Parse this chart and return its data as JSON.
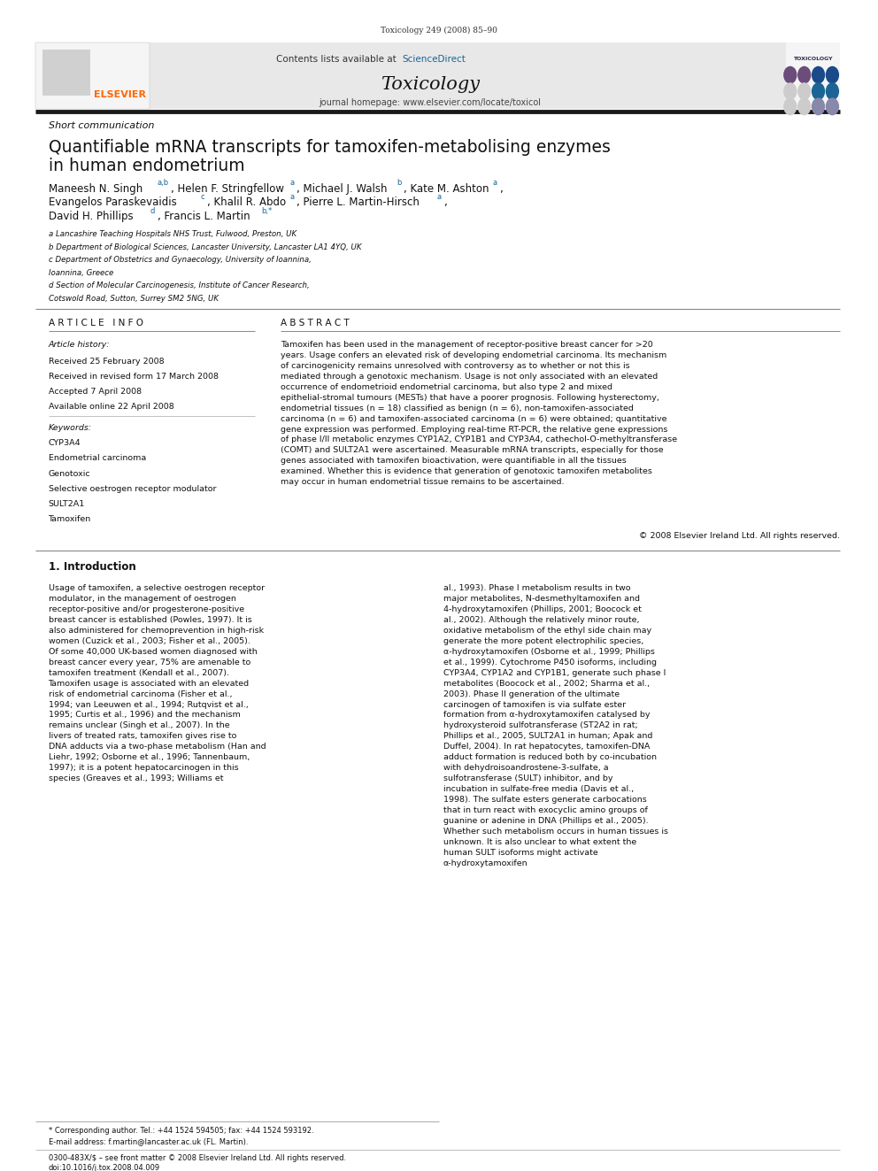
{
  "page_width": 9.92,
  "page_height": 13.23,
  "bg_color": "#ffffff",
  "journal_cite": "Toxicology 249 (2008) 85–90",
  "journal_title": "Toxicology",
  "contents_text": "Contents lists available at ScienceDirect",
  "sciencedirect_color": "#1a6496",
  "journal_homepage": "journal homepage: www.elsevier.com/locate/toxicol",
  "section_label": "Short communication",
  "article_title_line1": "Quantifiable mRNA transcripts for tamoxifen-metabolising enzymes",
  "article_title_line2": "in human endometrium",
  "affil_a": "a Lancashire Teaching Hospitals NHS Trust, Fulwood, Preston, UK",
  "affil_b": "b Department of Biological Sciences, Lancaster University, Lancaster LA1 4YQ, UK",
  "affil_c": "c Department of Obstetrics and Gynaecology, University of Ioannina,",
  "affil_c2": "Ioannina, Greece",
  "affil_d": "d Section of Molecular Carcinogenesis, Institute of Cancer Research,",
  "affil_d2": "Cotswold Road, Sutton, Surrey SM2 5NG, UK",
  "article_history_label": "Article history:",
  "received": "Received 25 February 2008",
  "received_revised": "Received in revised form 17 March 2008",
  "accepted": "Accepted 7 April 2008",
  "available": "Available online 22 April 2008",
  "keywords_label": "Keywords:",
  "keyword1": "CYP3A4",
  "keyword2": "Endometrial carcinoma",
  "keyword3": "Genotoxic",
  "keyword4": "Selective oestrogen receptor modulator",
  "keyword5": "SULT2A1",
  "keyword6": "Tamoxifen",
  "abstract_text": "Tamoxifen has been used in the management of receptor-positive breast cancer for >20 years. Usage confers an elevated risk of developing endometrial carcinoma. Its mechanism of carcinogenicity remains unresolved with controversy as to whether or not this is mediated through a genotoxic mechanism. Usage is not only associated with an elevated occurrence of endometrioid endometrial carcinoma, but also type 2 and mixed epithelial-stromal tumours (MESTs) that have a poorer prognosis. Following hysterectomy, endometrial tissues (n = 18) classified as benign (n = 6), non-tamoxifen-associated carcinoma (n = 6) and tamoxifen-associated carcinoma (n = 6) were obtained; quantitative gene expression was performed. Employing real-time RT-PCR, the relative gene expressions of phase I/II metabolic enzymes CYP1A2, CYP1B1 and CYP3A4, cathechol-O-methyltransferase (COMT) and SULT2A1 were ascertained. Measurable mRNA transcripts, especially for those genes associated with tamoxifen bioactivation, were quantifiable in all the tissues examined. Whether this is evidence that generation of genotoxic tamoxifen metabolites may occur in human endometrial tissue remains to be ascertained.",
  "copyright": "© 2008 Elsevier Ireland Ltd. All rights reserved.",
  "intro_header": "1. Introduction",
  "intro_text_col1": "Usage of tamoxifen, a selective oestrogen receptor modulator, in the management of oestrogen receptor-positive and/or progesterone-positive breast cancer is established (Powles, 1997). It is also administered for chemoprevention in high-risk women (Cuzick et al., 2003; Fisher et al., 2005). Of some 40,000 UK-based women diagnosed with breast cancer every year, 75% are amenable to tamoxifen treatment (Kendall et al., 2007). Tamoxifen usage is associated with an elevated risk of endometrial carcinoma (Fisher et al., 1994; van Leeuwen et al., 1994; Rutqvist et al., 1995; Curtis et al., 1996) and the mechanism remains unclear (Singh et al., 2007). In the livers of treated rats, tamoxifen gives rise to DNA adducts via a two-phase metabolism (Han and Liehr, 1992; Osborne et al., 1996; Tannenbaum, 1997); it is a potent hepatocarcinogen in this species (Greaves et al., 1993; Williams et",
  "intro_text_col2": "al., 1993). Phase I metabolism results in two major metabolites, N-desmethyltamoxifen and 4-hydroxytamoxifen (Phillips, 2001; Boocock et al., 2002). Although the relatively minor route, oxidative metabolism of the ethyl side chain may generate the more potent electrophilic species, α-hydroxytamoxifen (Osborne et al., 1999; Phillips et al., 1999). Cytochrome P450 isoforms, including CYP3A4, CYP1A2 and CYP1B1, generate such phase I metabolites (Boocock et al., 2002; Sharma et al., 2003). Phase II generation of the ultimate carcinogen of tamoxifen is via sulfate ester formation from α-hydroxytamoxifen catalysed by hydroxysteroid sulfotransferase (ST2A2 in rat; Phillips et al., 2005, SULT2A1 in human; Apak and Duffel, 2004). In rat hepatocytes, tamoxifen-DNA adduct formation is reduced both by co-incubation with dehydroisoandrostene-3-sulfate, a sulfotransferase (SULT) inhibitor, and by incubation in sulfate-free media (Davis et al., 1998). The sulfate esters generate carbocations that in turn react with exocyclic amino groups of guanine or adenine in DNA (Phillips et al., 2005). Whether such metabolism occurs in human tissues is unknown. It is also unclear to what extent the human SULT isoforms might activate α-hydroxytamoxifen",
  "footnote_star": "* Corresponding author. Tel.: +44 1524 594505; fax: +44 1524 593192.",
  "footnote_email": "E-mail address: f.martin@lancaster.ac.uk (FL. Martin).",
  "issn_line": "0300-483X/$ – see front matter © 2008 Elsevier Ireland Ltd. All rights reserved.",
  "doi_line": "doi:10.1016/j.tox.2008.04.009",
  "header_bg": "#e8e8e8",
  "thick_line_color": "#1a1a1a",
  "elsevier_orange": "#FF6600",
  "link_color": "#1a6496",
  "circle_colors_row1": [
    "#6b4c7a",
    "#6b4c7a",
    "#1a4a8a",
    "#1a4a8a"
  ],
  "circle_colors_row2": [
    "#cccccc",
    "#cccccc",
    "#1a6496",
    "#1a6496"
  ]
}
